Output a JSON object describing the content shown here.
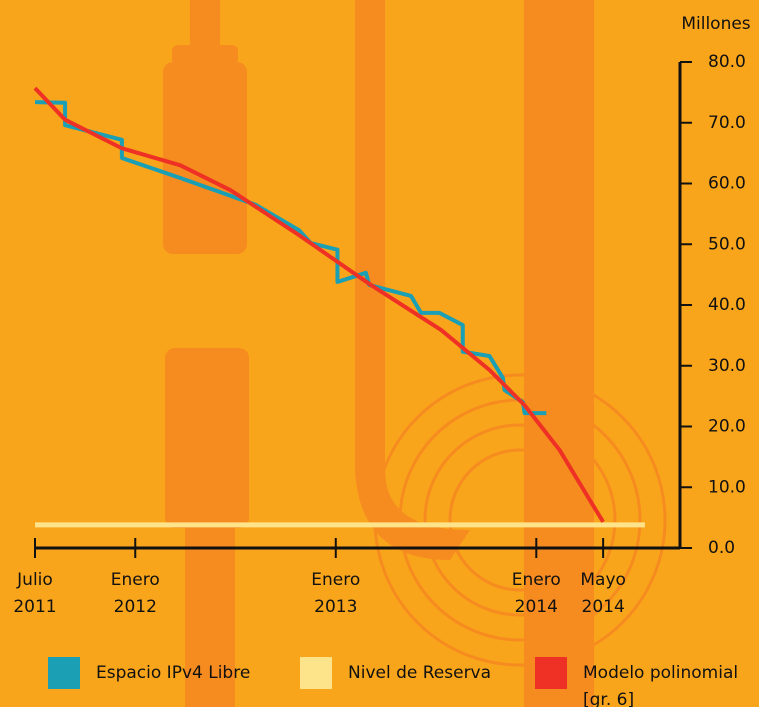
{
  "chart_data": {
    "type": "line",
    "y_axis_label": "Millones",
    "xlim": [
      0,
      38.6
    ],
    "ylim": [
      0,
      80
    ],
    "xticks": [
      {
        "value": 0,
        "label": "Julio\n2011"
      },
      {
        "value": 6,
        "label": "Enero\n2012"
      },
      {
        "value": 18,
        "label": "Enero\n2013"
      },
      {
        "value": 30,
        "label": "Enero\n2014"
      },
      {
        "value": 34,
        "label": "Mayo\n2014"
      }
    ],
    "yticks": [
      {
        "value": 0,
        "label": "0.0"
      },
      {
        "value": 10,
        "label": "10.0"
      },
      {
        "value": 20,
        "label": "20.0"
      },
      {
        "value": 30,
        "label": "30.0"
      },
      {
        "value": 40,
        "label": "40.0"
      },
      {
        "value": 50,
        "label": "50.0"
      },
      {
        "value": 60,
        "label": "60.0"
      },
      {
        "value": 70,
        "label": "70.0"
      },
      {
        "value": 80,
        "label": "80.0"
      }
    ],
    "series": [
      {
        "name": "Espacio IPv4 Libre",
        "color": "#1a9fb5",
        "x": [
          0,
          1.8,
          1.8,
          5.2,
          5.2,
          8.7,
          13.2,
          15.8,
          16.5,
          18.1,
          18.1,
          19.8,
          20.0,
          22.5,
          23.1,
          24.2,
          25.6,
          25.6,
          27.2,
          28.0,
          28.1,
          29.2,
          29.3,
          30.6
        ],
        "values": [
          73.4,
          73.3,
          69.6,
          67.2,
          64.2,
          60.9,
          56.5,
          52.3,
          50.2,
          49.1,
          43.8,
          45.3,
          43.3,
          41.5,
          38.7,
          38.7,
          36.7,
          32.3,
          31.6,
          28.0,
          26.0,
          24.0,
          22.2,
          22.2
        ]
      },
      {
        "name": "Nivel de Reserva",
        "color": "#fde38a",
        "x": [
          0,
          36.5
        ],
        "values": [
          3.8,
          3.8
        ]
      },
      {
        "name": "Modelo polinomial\n[gr. 6]",
        "color": "#ee3124",
        "x": [
          0,
          1.8,
          5.2,
          8.7,
          11.7,
          15.8,
          20.1,
          24.3,
          27.2,
          29.3,
          31.4,
          33.2,
          34
        ],
        "values": [
          75.7,
          70.5,
          65.8,
          63,
          58.9,
          51.5,
          43.3,
          35.9,
          29.3,
          23.5,
          16.1,
          7.9,
          4.3
        ]
      }
    ]
  }
}
